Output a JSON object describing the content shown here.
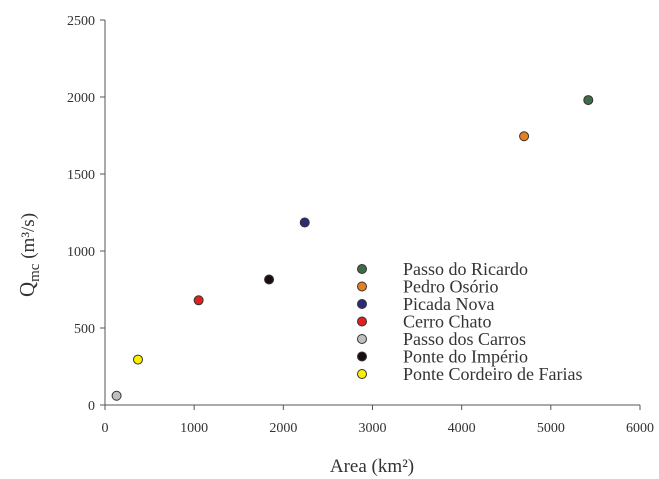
{
  "chart_data": {
    "type": "scatter",
    "title": "",
    "xlabel": "Area (km²)",
    "ylabel_main": "Q",
    "ylabel_sub": "mc",
    "ylabel_unit": " (m³/s)",
    "xlim": [
      0,
      6000
    ],
    "ylim": [
      0,
      2500
    ],
    "xticks": [
      0,
      1000,
      2000,
      3000,
      4000,
      5000,
      6000
    ],
    "yticks": [
      0,
      500,
      1000,
      1500,
      2000,
      2500
    ],
    "grid": false,
    "legend_position": "lower-right",
    "series": [
      {
        "name": "Passo do Ricardo",
        "color": "#3f6b48",
        "x": 5420,
        "y": 1980
      },
      {
        "name": "Pedro Osório",
        "color": "#e67e22",
        "x": 4700,
        "y": 1745
      },
      {
        "name": "Picada Nova",
        "color": "#2e2a7a",
        "x": 2240,
        "y": 1185
      },
      {
        "name": "Cerro Chato",
        "color": "#e02020",
        "x": 1050,
        "y": 680
      },
      {
        "name": "Passo dos Carros",
        "color": "#bfbfbf",
        "x": 130,
        "y": 60
      },
      {
        "name": "Ponte do Império",
        "color": "#1a0d0d",
        "x": 1840,
        "y": 815
      },
      {
        "name": "Ponte Cordeiro de Farias",
        "color": "#ffee00",
        "x": 370,
        "y": 295
      }
    ]
  }
}
